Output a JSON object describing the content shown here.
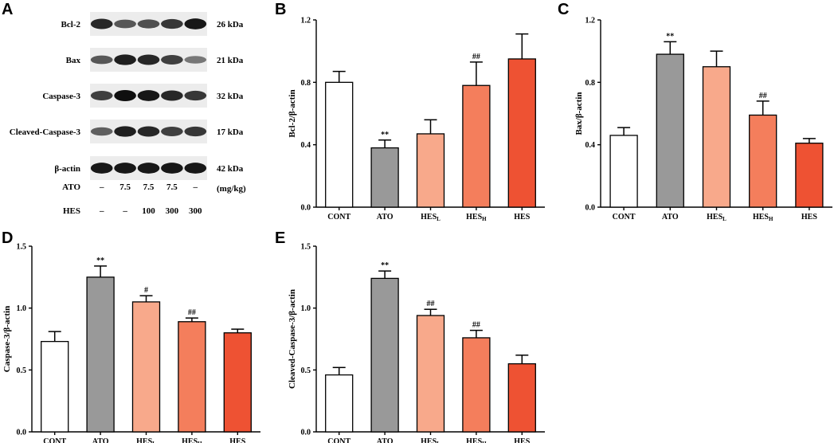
{
  "panel_a": {
    "letter": "A",
    "rows": [
      {
        "protein": "Bcl-2",
        "kda": "26 kDa",
        "intensity": [
          0.85,
          0.55,
          0.6,
          0.75,
          0.95
        ]
      },
      {
        "protein": "Bax",
        "kda": "21 kDa",
        "intensity": [
          0.55,
          0.9,
          0.85,
          0.7,
          0.35
        ]
      },
      {
        "protein": "Caspase-3",
        "kda": "32 kDa",
        "intensity": [
          0.7,
          1.0,
          0.95,
          0.85,
          0.75
        ]
      },
      {
        "protein": "Cleaved-Caspase-3",
        "kda": "17 kDa",
        "intensity": [
          0.5,
          0.9,
          0.85,
          0.7,
          0.75
        ]
      },
      {
        "protein": "β-actin",
        "kda": "42 kDa",
        "intensity": [
          0.95,
          0.95,
          0.95,
          0.95,
          0.95
        ]
      }
    ],
    "treatments": [
      {
        "name": "ATO",
        "values": [
          "–",
          "7.5",
          "7.5",
          "7.5",
          "–"
        ],
        "unit": "(mg/kg)"
      },
      {
        "name": "HES",
        "values": [
          "–",
          "–",
          "100",
          "300",
          "300"
        ],
        "unit": ""
      }
    ]
  },
  "colors": {
    "CONT": "#ffffff",
    "ATO": "#999999",
    "HESL": "#f8a98b",
    "HESH": "#f47e5c",
    "HES": "#ee5233"
  },
  "chart_data": [
    {
      "letter": "B",
      "type": "bar",
      "ylabel": "Bcl-2/β-actin",
      "ylim": [
        0,
        1.2
      ],
      "yticks": [
        "0.0",
        "0.4",
        "0.8",
        "1.2"
      ],
      "categories": [
        {
          "main": "CONT",
          "sub": ""
        },
        {
          "main": "ATO",
          "sub": ""
        },
        {
          "main": "HES",
          "sub": "L"
        },
        {
          "main": "HES",
          "sub": "H"
        },
        {
          "main": "HES",
          "sub": ""
        }
      ],
      "values": [
        0.8,
        0.38,
        0.47,
        0.78,
        0.95
      ],
      "errors": [
        0.07,
        0.05,
        0.09,
        0.15,
        0.16
      ],
      "significance": [
        "",
        "**",
        "",
        "##",
        ""
      ]
    },
    {
      "letter": "C",
      "type": "bar",
      "ylabel": "Bax/β-actin",
      "ylim": [
        0,
        1.2
      ],
      "yticks": [
        "0.0",
        "0.4",
        "0.8",
        "1.2"
      ],
      "categories": [
        {
          "main": "CONT",
          "sub": ""
        },
        {
          "main": "ATO",
          "sub": ""
        },
        {
          "main": "HES",
          "sub": "L"
        },
        {
          "main": "HES",
          "sub": "H"
        },
        {
          "main": "HES",
          "sub": ""
        }
      ],
      "values": [
        0.46,
        0.98,
        0.9,
        0.59,
        0.41
      ],
      "errors": [
        0.05,
        0.08,
        0.1,
        0.09,
        0.03
      ],
      "significance": [
        "",
        "**",
        "",
        "##",
        ""
      ]
    },
    {
      "letter": "D",
      "type": "bar",
      "ylabel": "Caspase-3/β-actin",
      "ylim": [
        0,
        1.5
      ],
      "yticks": [
        "0.0",
        "0.5",
        "1.0",
        "1.5"
      ],
      "categories": [
        {
          "main": "CONT",
          "sub": ""
        },
        {
          "main": "ATO",
          "sub": ""
        },
        {
          "main": "HES",
          "sub": "L"
        },
        {
          "main": "HES",
          "sub": "H"
        },
        {
          "main": "HES",
          "sub": ""
        }
      ],
      "values": [
        0.73,
        1.25,
        1.05,
        0.89,
        0.8
      ],
      "errors": [
        0.08,
        0.09,
        0.05,
        0.03,
        0.03
      ],
      "significance": [
        "",
        "**",
        "#",
        "##",
        ""
      ]
    },
    {
      "letter": "E",
      "type": "bar",
      "ylabel": "Cleaved-Caspase-3/β-actin",
      "ylim": [
        0,
        1.5
      ],
      "yticks": [
        "0.0",
        "0.5",
        "1.0",
        "1.5"
      ],
      "categories": [
        {
          "main": "CONT",
          "sub": ""
        },
        {
          "main": "ATO",
          "sub": ""
        },
        {
          "main": "HES",
          "sub": "L"
        },
        {
          "main": "HES",
          "sub": "H"
        },
        {
          "main": "HES",
          "sub": ""
        }
      ],
      "values": [
        0.46,
        1.24,
        0.94,
        0.76,
        0.55
      ],
      "errors": [
        0.06,
        0.06,
        0.05,
        0.06,
        0.07
      ],
      "significance": [
        "",
        "**",
        "##",
        "##",
        ""
      ]
    }
  ]
}
